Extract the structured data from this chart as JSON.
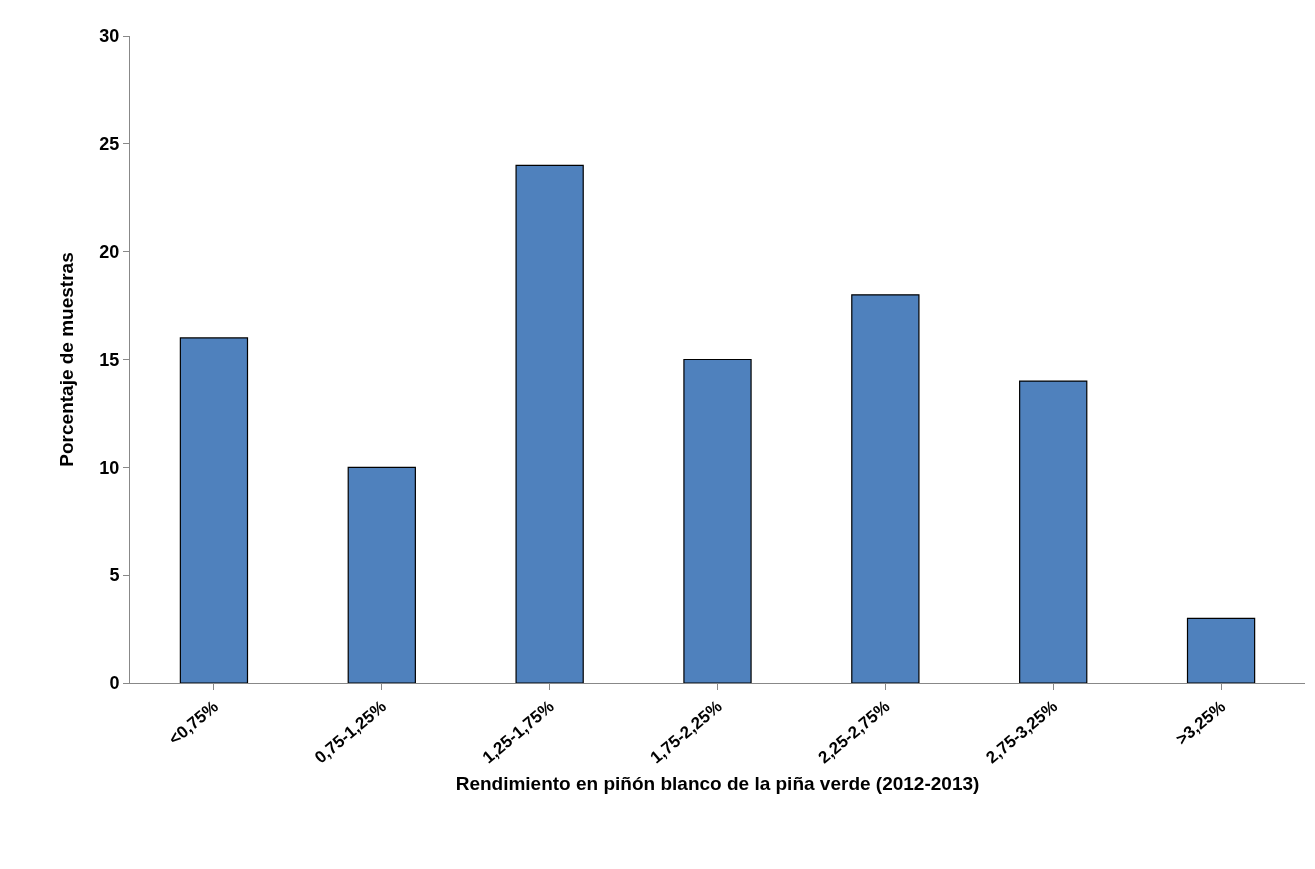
{
  "chart_data": {
    "type": "bar",
    "xlabel": "Rendimiento en piñón blanco de la piña verde (2012-2013)",
    "ylabel": "Porcentaje de muestras",
    "categories": [
      "<0,75%",
      "0,75-1,25%",
      "1,25-1,75%",
      "1,75-2,25%",
      "2,25-2,75%",
      "2,75-3,25%",
      ">3,25%"
    ],
    "values": [
      16,
      10,
      24,
      15,
      18,
      14,
      3
    ],
    "color": "#4f81bd",
    "ylim": [
      0,
      30
    ],
    "yticks": [
      0,
      5,
      10,
      15,
      20,
      25,
      30
    ]
  }
}
